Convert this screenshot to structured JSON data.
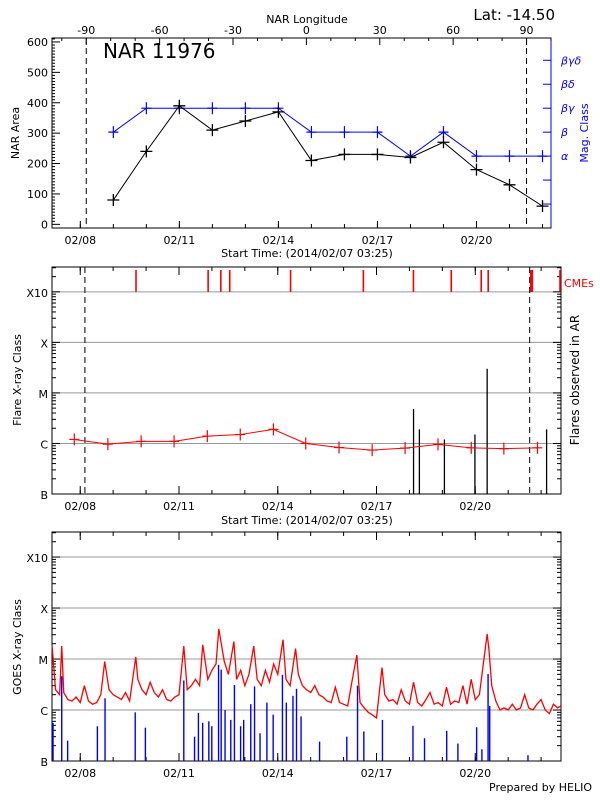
{
  "chart_data": [
    {
      "type": "line",
      "title": "NAR 11976",
      "lat_label": "Lat: -14.50",
      "xlabel": "Start Time: (2014/02/07 03:25)",
      "xlim": [
        "02/07 03:25",
        "02/22 06:10"
      ],
      "xticks": [
        "02/08",
        "02/11",
        "02/14",
        "02/17",
        "02/20"
      ],
      "x2label": "NAR Longitude",
      "x2lim": [
        -104,
        100
      ],
      "x2ticks": [
        -90,
        -60,
        -30,
        0,
        30,
        60,
        90
      ],
      "ylabel": "NAR Area",
      "ylim": [
        -12,
        613
      ],
      "yticks": [
        0,
        100,
        200,
        300,
        400,
        500,
        600
      ],
      "y2label": "Mag. Class",
      "y2ticks": [
        "",
        "",
        "α",
        "β",
        "βγ",
        "βδ",
        "βγδ"
      ],
      "dashed_longitudes": [
        -90,
        90
      ],
      "area": {
        "color": "#000000",
        "x": [
          "02/09 00:00",
          "02/10 00:00",
          "02/11 00:00",
          "02/12 00:00",
          "02/13 00:00",
          "02/14 00:00",
          "02/15 00:00",
          "02/16 00:00",
          "02/17 00:00",
          "02/18 00:00",
          "02/19 00:00",
          "02/20 00:00",
          "02/21 00:00",
          "02/22 00:00"
        ],
        "values": [
          80,
          240,
          390,
          310,
          340,
          370,
          210,
          230,
          230,
          220,
          270,
          180,
          130,
          60
        ]
      },
      "mag_class": {
        "color": "#0000ff",
        "values": [
          "β",
          "βγ",
          "βγ",
          "βγ",
          "βγ",
          "βγ",
          "β",
          "β",
          "β",
          "α",
          "β",
          "α",
          "α",
          "α"
        ]
      }
    },
    {
      "type": "line",
      "xlabel": "Start Time: (2014/02/07 03:25)",
      "xlim": [
        "02/07 03:25",
        "02/22 14:30"
      ],
      "xticks": [
        "02/08",
        "02/11",
        "02/14",
        "02/17",
        "02/20"
      ],
      "ylabel": "Flare X-ray Class",
      "y2label": "Flares observed in AR",
      "yscale": "log",
      "ylim": [
        "B1.0",
        "X31"
      ],
      "yticks": [
        {
          "label": "B",
          "class": "B1.0"
        },
        {
          "label": "C",
          "class": "C1.0"
        },
        {
          "label": "M",
          "class": "M1.0"
        },
        {
          "label": "X",
          "class": "X1.0"
        },
        {
          "label": "X10",
          "class": "X10"
        }
      ],
      "grid": true,
      "dashed_times": [
        "02/08 03:25",
        "02/21 15:40"
      ],
      "daily_class": {
        "color": "#ff0000",
        "points": [
          [
            "02/07 19:40",
            "C1.2"
          ],
          [
            "02/08 20:10",
            "B9.7"
          ],
          [
            "02/09 20:25",
            "C1.1"
          ],
          [
            "02/10 20:25",
            "C1.1"
          ],
          [
            "02/11 20:40",
            "C1.4"
          ],
          [
            "02/12 20:40",
            "C1.5"
          ],
          [
            "02/13 20:50",
            "C1.9"
          ],
          [
            "02/14 20:25",
            "C1.0"
          ],
          [
            "02/15 20:40",
            "B8.3"
          ],
          [
            "02/16 20:50",
            "B7.4"
          ],
          [
            "02/17 20:50",
            "B8.1"
          ],
          [
            "02/18 20:50",
            "B9.6"
          ],
          [
            "02/19 21:05",
            "B8.2"
          ],
          [
            "02/20 20:50",
            "B7.9"
          ],
          [
            "02/21 21:20",
            "B8.2"
          ]
        ]
      },
      "flares": {
        "color": "#000000",
        "points": [
          [
            "02/18 03:00",
            "C4.8"
          ],
          [
            "02/18 07:15",
            "C1.9"
          ],
          [
            "02/19 01:30",
            "C1.2"
          ],
          [
            "02/19 23:45",
            "C1.5"
          ],
          [
            "02/20 08:40",
            "M3.0"
          ],
          [
            "02/22 04:00",
            "C1.9"
          ]
        ]
      },
      "cme_label": "CMEs",
      "cmes": {
        "color": "#ff0000",
        "times": [
          "02/09 16:40",
          "02/11 21:15",
          "02/12 06:30",
          "02/12 13:00",
          "02/14 09:20",
          "02/16 14:25",
          "02/18 02:55",
          "02/19 06:30",
          "02/20 04:20",
          "02/20 09:25",
          "02/21 16:30",
          "02/21 17:35",
          "02/22 14:25"
        ]
      }
    },
    {
      "type": "line",
      "xlim": [
        "02/07 03:25",
        "02/22 14:30"
      ],
      "xticks": [
        "02/08",
        "02/11",
        "02/14",
        "02/17",
        "02/20"
      ],
      "ylabel": "GOES X-ray Class",
      "yscale": "log",
      "ylim": [
        "B1.0",
        "X31"
      ],
      "yticks": [
        {
          "label": "B",
          "class": "B1.0"
        },
        {
          "label": "C",
          "class": "C1.0"
        },
        {
          "label": "M",
          "class": "M1.0"
        },
        {
          "label": "X",
          "class": "X1.0"
        },
        {
          "label": "X10",
          "class": "X10"
        }
      ],
      "grid": true,
      "long_channel": {
        "color": "#ff0000",
        "points": [
          [
            "02/07 03:30",
            "M1.8"
          ],
          [
            "02/07 06:00",
            "C2.5"
          ],
          [
            "02/07 09:00",
            "C2.0"
          ],
          [
            "02/07 10:30",
            "M1.8"
          ],
          [
            "02/07 12:00",
            "C2.2"
          ],
          [
            "02/07 15:00",
            "C1.6"
          ],
          [
            "02/07 18:00",
            "C1.5"
          ],
          [
            "02/07 21:00",
            "C1.8"
          ],
          [
            "02/08 00:00",
            "C1.4"
          ],
          [
            "02/08 03:00",
            "C3.0"
          ],
          [
            "02/08 06:00",
            "C1.5"
          ],
          [
            "02/08 09:00",
            "C1.3"
          ],
          [
            "02/08 12:00",
            "C1.4"
          ],
          [
            "02/08 15:00",
            "C2.0"
          ],
          [
            "02/08 17:50",
            "C8.9"
          ],
          [
            "02/08 21:00",
            "C2.5"
          ],
          [
            "02/09 00:00",
            "C2.0"
          ],
          [
            "02/09 03:00",
            "C1.8"
          ],
          [
            "02/09 06:00",
            "C1.6"
          ],
          [
            "02/09 09:00",
            "C2.2"
          ],
          [
            "02/09 12:00",
            "C1.5"
          ],
          [
            "02/09 16:30",
            "M1.1"
          ],
          [
            "02/09 18:00",
            "C4.0"
          ],
          [
            "02/09 21:00",
            "C2.5"
          ],
          [
            "02/10 00:00",
            "C2.0"
          ],
          [
            "02/10 03:00",
            "C3.5"
          ],
          [
            "02/10 06:00",
            "C2.2"
          ],
          [
            "02/10 09:00",
            "C1.8"
          ],
          [
            "02/10 12:00",
            "C2.5"
          ],
          [
            "02/10 15:00",
            "C1.6"
          ],
          [
            "02/10 18:00",
            "C1.5"
          ],
          [
            "02/10 21:00",
            "C1.8"
          ],
          [
            "02/11 00:00",
            "C2.0"
          ],
          [
            "02/11 03:30",
            "M1.8"
          ],
          [
            "02/11 06:00",
            "C2.5"
          ],
          [
            "02/11 09:00",
            "C3.0"
          ],
          [
            "02/11 12:00",
            "C4.0"
          ],
          [
            "02/11 15:00",
            "C3.0"
          ],
          [
            "02/11 17:20",
            "M1.9"
          ],
          [
            "02/11 21:00",
            "C4.0"
          ],
          [
            "02/12 00:00",
            "C6.0"
          ],
          [
            "02/12 03:00",
            "C8.0"
          ],
          [
            "02/12 05:00",
            "M3.9"
          ],
          [
            "02/12 09:00",
            "C9.0"
          ],
          [
            "02/12 12:00",
            "C5.0"
          ],
          [
            "02/12 16:00",
            "M2.2"
          ],
          [
            "02/12 18:00",
            "C4.0"
          ],
          [
            "02/12 21:00",
            "C6.0"
          ],
          [
            "02/13 00:00",
            "C3.0"
          ],
          [
            "02/13 03:00",
            "C5.0"
          ],
          [
            "02/13 06:30",
            "M1.8"
          ],
          [
            "02/13 09:00",
            "C4.0"
          ],
          [
            "02/13 12:00",
            "C3.0"
          ],
          [
            "02/13 15:00",
            "C6.0"
          ],
          [
            "02/13 18:00",
            "C3.5"
          ],
          [
            "02/13 21:00",
            "C8.0"
          ],
          [
            "02/14 00:00",
            "C5.0"
          ],
          [
            "02/14 03:50",
            "M2.4"
          ],
          [
            "02/14 06:00",
            "C4.0"
          ],
          [
            "02/14 09:00",
            "C3.0"
          ],
          [
            "02/14 13:00",
            "M1.6"
          ],
          [
            "02/14 15:00",
            "C5.0"
          ],
          [
            "02/14 18:00",
            "C3.0"
          ],
          [
            "02/14 21:00",
            "C2.5"
          ],
          [
            "02/15 00:00",
            "C2.2"
          ],
          [
            "02/15 03:00",
            "C3.0"
          ],
          [
            "02/15 06:00",
            "C2.0"
          ],
          [
            "02/15 09:00",
            "C1.8"
          ],
          [
            "02/15 12:00",
            "C1.5"
          ],
          [
            "02/15 15:00",
            "C1.4"
          ],
          [
            "02/15 18:00",
            "C2.8"
          ],
          [
            "02/15 21:00",
            "C1.4"
          ],
          [
            "02/16 00:00",
            "C1.3"
          ],
          [
            "02/16 03:00",
            "C1.2"
          ],
          [
            "02/16 06:00",
            "C3.5"
          ],
          [
            "02/16 09:40",
            "M1.2"
          ],
          [
            "02/16 12:00",
            "C1.4"
          ],
          [
            "02/16 15:00",
            "C1.1"
          ],
          [
            "02/16 18:00",
            "B9.0"
          ],
          [
            "02/16 21:00",
            "B8.0"
          ],
          [
            "02/17 00:00",
            "B7.0"
          ],
          [
            "02/17 04:00",
            "C6.8"
          ],
          [
            "02/17 06:00",
            "C2.0"
          ],
          [
            "02/17 09:00",
            "C1.5"
          ],
          [
            "02/17 12:00",
            "C1.6"
          ],
          [
            "02/17 15:00",
            "C1.3"
          ],
          [
            "02/17 18:00",
            "C2.5"
          ],
          [
            "02/17 21:00",
            "C1.5"
          ],
          [
            "02/18 00:00",
            "C1.3"
          ],
          [
            "02/18 03:00",
            "C3.5"
          ],
          [
            "02/18 06:00",
            "C1.4"
          ],
          [
            "02/18 09:00",
            "C1.2"
          ],
          [
            "02/18 12:00",
            "C1.6"
          ],
          [
            "02/18 15:00",
            "C2.2"
          ],
          [
            "02/18 18:00",
            "C1.3"
          ],
          [
            "02/18 21:00",
            "C1.4"
          ],
          [
            "02/19 00:00",
            "C1.2"
          ],
          [
            "02/19 03:00",
            "C2.8"
          ],
          [
            "02/19 06:00",
            "C1.3"
          ],
          [
            "02/19 09:00",
            "C1.5"
          ],
          [
            "02/19 12:00",
            "C1.4"
          ],
          [
            "02/19 15:00",
            "C3.0"
          ],
          [
            "02/19 18:00",
            "C1.3"
          ],
          [
            "02/19 21:00",
            "C4.0"
          ],
          [
            "02/20 00:00",
            "C1.6"
          ],
          [
            "02/20 03:00",
            "C2.0"
          ],
          [
            "02/20 08:40",
            "M3.1"
          ],
          [
            "02/20 10:00",
            "M1.5"
          ],
          [
            "02/20 12:00",
            "C3.0"
          ],
          [
            "02/20 15:00",
            "C1.5"
          ],
          [
            "02/20 18:00",
            "C1.0"
          ],
          [
            "02/20 21:00",
            "C1.1"
          ],
          [
            "02/21 00:00",
            "C1.0"
          ],
          [
            "02/21 03:00",
            "C1.3"
          ],
          [
            "02/21 06:00",
            "C1.0"
          ],
          [
            "02/21 09:00",
            "C1.1"
          ],
          [
            "02/21 12:00",
            "C2.0"
          ],
          [
            "02/21 15:00",
            "C1.1"
          ],
          [
            "02/21 18:00",
            "C1.0"
          ],
          [
            "02/21 21:00",
            "C1.3"
          ],
          [
            "02/22 00:00",
            "C1.6"
          ],
          [
            "02/22 03:00",
            "C1.0"
          ],
          [
            "02/22 06:00",
            "B8.5"
          ],
          [
            "02/22 09:00",
            "C1.3"
          ],
          [
            "02/22 12:00",
            "C1.1"
          ],
          [
            "02/22 14:25",
            "C1.2"
          ]
        ]
      },
      "short_channel": {
        "color": "#0000ff",
        "points": [
          [
            "02/07 04:10",
            "B5.6"
          ],
          [
            "02/07 10:30",
            "C4.6"
          ],
          [
            "02/07 14:50",
            "B2.5"
          ],
          [
            "02/08 12:30",
            "B4.8"
          ],
          [
            "02/08 18:05",
            "C1.7"
          ],
          [
            "02/09 16:05",
            "B9.0"
          ],
          [
            "02/09 23:30",
            "B4.5"
          ],
          [
            "02/11 03:30",
            "C3.8"
          ],
          [
            "02/11 11:20",
            "B3.0"
          ],
          [
            "02/11 14:10",
            "B8.8"
          ],
          [
            "02/11 17:15",
            "B5.6"
          ],
          [
            "02/11 21:45",
            "B6.0"
          ],
          [
            "02/11 23:55",
            "B4.8"
          ],
          [
            "02/12 04:50",
            "C7.7"
          ],
          [
            "02/12 06:45",
            "C6.2"
          ],
          [
            "02/12 09:35",
            "C1.0"
          ],
          [
            "02/12 13:45",
            "B6.4"
          ],
          [
            "02/12 16:25",
            "C3.1"
          ],
          [
            "02/12 20:55",
            "B4.8"
          ],
          [
            "02/12 23:10",
            "B6.4"
          ],
          [
            "02/13 04:20",
            "C1.3"
          ],
          [
            "02/13 07:05",
            "C2.9"
          ],
          [
            "02/13 11:05",
            "B3.5"
          ],
          [
            "02/13 16:05",
            "C1.4"
          ],
          [
            "02/13 20:40",
            "B8.1"
          ],
          [
            "02/14 03:25",
            "C4.9"
          ],
          [
            "02/14 06:15",
            "C1.4"
          ],
          [
            "02/14 11:05",
            "C1.9"
          ],
          [
            "02/14 13:40",
            "C2.6"
          ],
          [
            "02/14 17:00",
            "B7.5"
          ],
          [
            "02/15 06:30",
            "B2.4"
          ],
          [
            "02/16 02:20",
            "B3.0"
          ],
          [
            "02/16 10:10",
            "C3.0"
          ],
          [
            "02/16 14:45",
            "B3.8"
          ],
          [
            "02/17 04:20",
            "B6.4"
          ],
          [
            "02/18 02:35",
            "B4.9"
          ],
          [
            "02/18 11:00",
            "B2.8"
          ],
          [
            "02/19 03:10",
            "B3.9"
          ],
          [
            "02/19 11:20",
            "B2.2"
          ],
          [
            "02/20 01:00",
            "B4.6"
          ],
          [
            "02/20 04:50",
            "B1.7"
          ],
          [
            "02/20 09:20",
            "C5.1"
          ],
          [
            "02/20 10:30",
            "C1.2"
          ],
          [
            "02/21 14:25",
            "B1.3"
          ]
        ]
      },
      "footer": "Prepared by HELIO"
    }
  ]
}
